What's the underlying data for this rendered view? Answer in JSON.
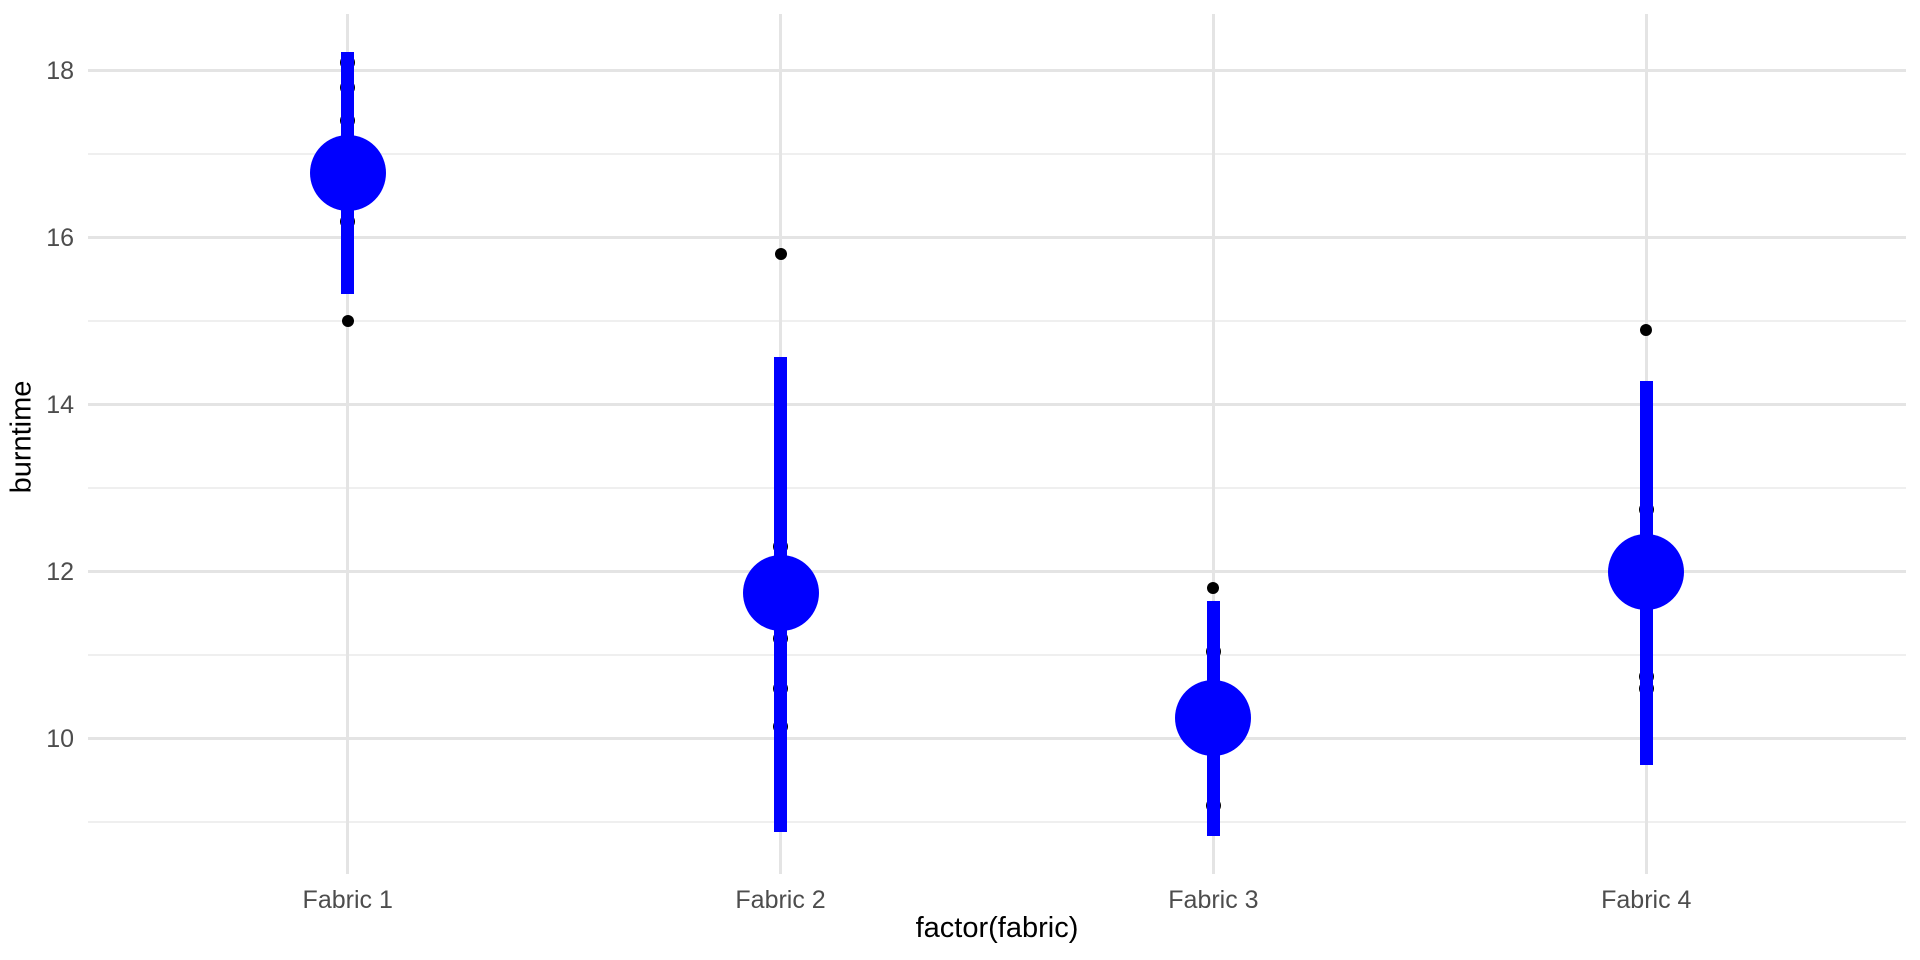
{
  "chart_data": {
    "type": "pointrange",
    "title": "",
    "xlabel": "factor(fabric)",
    "ylabel": "burntime",
    "categories": [
      "Fabric 1",
      "Fabric 2",
      "Fabric 3",
      "Fabric 4"
    ],
    "x_positions": [
      1,
      2,
      3,
      4
    ],
    "xlim": [
      0.4,
      4.6
    ],
    "ylim": [
      8.38,
      18.68
    ],
    "y_major_ticks": [
      10,
      12,
      14,
      16,
      18
    ],
    "y_minor_ticks": [
      9,
      11,
      13,
      15,
      17
    ],
    "grid": "on",
    "legend_position": "none",
    "series": [
      {
        "category": "Fabric 1",
        "range_low": 15.33,
        "range_high": 18.22,
        "mean": 16.78,
        "outlier_points": [
          15.0
        ],
        "occluded_points": [
          18.1,
          17.8,
          17.4,
          16.2
        ]
      },
      {
        "category": "Fabric 2",
        "range_low": 8.88,
        "range_high": 14.57,
        "mean": 11.75,
        "outlier_points": [
          15.8
        ],
        "occluded_points": [
          12.3,
          11.2,
          10.6,
          10.15
        ]
      },
      {
        "category": "Fabric 3",
        "range_low": 8.84,
        "range_high": 11.65,
        "mean": 10.25,
        "outlier_points": [
          11.8
        ],
        "occluded_points": [
          11.05,
          9.2
        ]
      },
      {
        "category": "Fabric 4",
        "range_low": 9.68,
        "range_high": 14.28,
        "mean": 12.0,
        "outlier_points": [
          14.9
        ],
        "occluded_points": [
          12.75,
          10.75,
          10.6
        ]
      }
    ],
    "style": {
      "range_color": "#0000FF",
      "mean_color": "#0000FF",
      "data_point_color": "#000000",
      "grid_major_color": "#E4E4E4",
      "grid_minor_color": "#EFEFEF",
      "tick_label_color": "#4D4D4D",
      "axis_title_color": "#000000",
      "background_color": "#FFFFFF"
    }
  }
}
